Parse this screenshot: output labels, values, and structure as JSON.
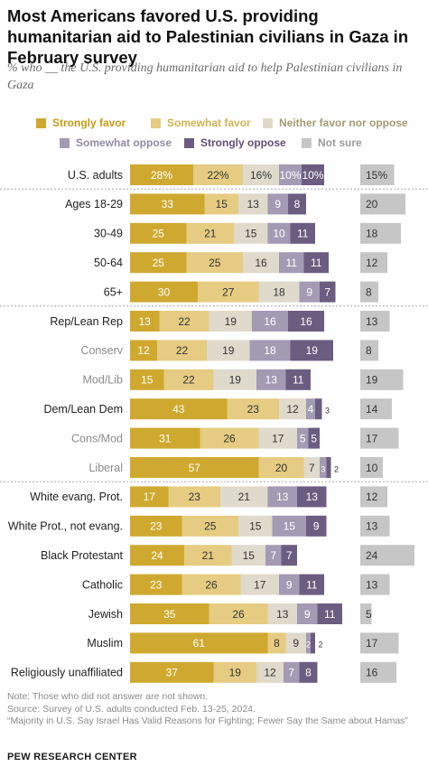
{
  "title": "Most Americans favored U.S. providing humanitarian aid to Palestinian civilians in Gaza in February survey",
  "subtitle": "% who __ the U.S. providing humanitarian aid to help Palestinian civilians in Gaza",
  "colors": {
    "strongly_favor": "#cfa92f",
    "somewhat_favor": "#e6cc82",
    "neither": "#dfdacb",
    "somewhat_oppose": "#a39ab4",
    "strongly_oppose": "#6b5d80",
    "not_sure": "#c6c6c6"
  },
  "legend": [
    {
      "label": "Strongly favor",
      "color": "#cfa92f",
      "text_color": "#c59a17"
    },
    {
      "label": "Somewhat favor",
      "color": "#e6cc82",
      "text_color": "#d2b352"
    },
    {
      "label": "Neither favor nor oppose",
      "color": "#dfdacb",
      "text_color": "#a39a74"
    },
    {
      "label": "Somewhat oppose",
      "color": "#a39ab4",
      "text_color": "#9189a5"
    },
    {
      "label": "Strongly oppose",
      "color": "#6b5d80",
      "text_color": "#5d4f73"
    },
    {
      "label": "Not sure",
      "color": "#c6c6c6",
      "text_color": "#9a9a9a"
    }
  ],
  "chart_data": {
    "type": "bar",
    "stacked": true,
    "orientation": "horizontal",
    "categories": [
      "U.S. adults",
      "Ages 18-29",
      "30-49",
      "50-64",
      "65+",
      "Rep/Lean Rep",
      "Conserv",
      "Mod/Lib",
      "Dem/Lean Dem",
      "Cons/Mod",
      "Liberal",
      "White evang. Prot.",
      "White Prot., not evang.",
      "Black Protestant",
      "Catholic",
      "Jewish",
      "Muslim",
      "Religiously unaffiliated"
    ],
    "category_styles": [
      "main",
      "main",
      "main",
      "main",
      "main",
      "main",
      "sub",
      "sub",
      "main",
      "sub",
      "sub",
      "main",
      "main",
      "main",
      "main",
      "main",
      "main",
      "main"
    ],
    "series": [
      {
        "name": "Strongly favor",
        "values": [
          28,
          33,
          25,
          25,
          30,
          13,
          12,
          15,
          43,
          31,
          57,
          17,
          23,
          24,
          23,
          35,
          61,
          37
        ],
        "labels": [
          "28%",
          "33",
          "25",
          "25",
          "30",
          "13",
          "12",
          "15",
          "43",
          "31",
          "57",
          "17",
          "23",
          "24",
          "23",
          "35",
          "61",
          "37"
        ]
      },
      {
        "name": "Somewhat favor",
        "values": [
          22,
          15,
          21,
          25,
          27,
          22,
          22,
          22,
          23,
          26,
          20,
          23,
          25,
          21,
          26,
          26,
          8,
          19
        ],
        "labels": [
          "22%",
          "15",
          "21",
          "25",
          "27",
          "22",
          "22",
          "22",
          "23",
          "26",
          "20",
          "23",
          "25",
          "21",
          "26",
          "26",
          "8",
          "19"
        ]
      },
      {
        "name": "Neither favor nor oppose",
        "values": [
          16,
          13,
          15,
          16,
          18,
          19,
          19,
          19,
          12,
          17,
          7,
          21,
          15,
          15,
          17,
          13,
          9,
          12
        ],
        "labels": [
          "16%",
          "13",
          "15",
          "16",
          "18",
          "19",
          "19",
          "19",
          "12",
          "17",
          "7",
          "21",
          "15",
          "15",
          "17",
          "13",
          "9",
          "12"
        ]
      },
      {
        "name": "Somewhat oppose",
        "values": [
          10,
          9,
          10,
          11,
          9,
          16,
          18,
          13,
          4,
          5,
          3,
          13,
          15,
          7,
          9,
          9,
          2,
          7
        ],
        "labels": [
          "10%",
          "9",
          "10",
          "11",
          "9",
          "16",
          "18",
          "13",
          "4",
          "5",
          "3",
          "13",
          "15",
          "7",
          "9",
          "9",
          "2",
          "7"
        ]
      },
      {
        "name": "Strongly oppose",
        "values": [
          10,
          8,
          11,
          11,
          7,
          16,
          19,
          11,
          3,
          5,
          2,
          13,
          9,
          7,
          11,
          11,
          2,
          8
        ],
        "labels": [
          "10%",
          "8",
          "11",
          "11",
          "7",
          "16",
          "19",
          "11",
          "3",
          "5",
          "2",
          "13",
          "9",
          "7",
          "11",
          "11",
          "2",
          "8"
        ]
      },
      {
        "name": "Not sure",
        "values": [
          15,
          20,
          18,
          12,
          8,
          13,
          8,
          19,
          14,
          17,
          10,
          12,
          13,
          24,
          13,
          5,
          17,
          16
        ],
        "labels": [
          "15%",
          "20",
          "18",
          "12",
          "8",
          "13",
          "8",
          "19",
          "14",
          "17",
          "10",
          "12",
          "13",
          "24",
          "13",
          "5",
          "17",
          "16"
        ]
      }
    ],
    "group_breaks_after": [
      0,
      4,
      10
    ],
    "grid": false,
    "legend_position": "top"
  },
  "notes": [
    "Note: Those who did not answer are not shown.",
    "Source: Survey of U.S. adults conducted Feb. 13-25, 2024.",
    "“Majority in U.S. Say Israel Has Valid Reasons for Fighting; Fewer Say the Same about Hamas”"
  ],
  "brand": "PEW RESEARCH CENTER"
}
